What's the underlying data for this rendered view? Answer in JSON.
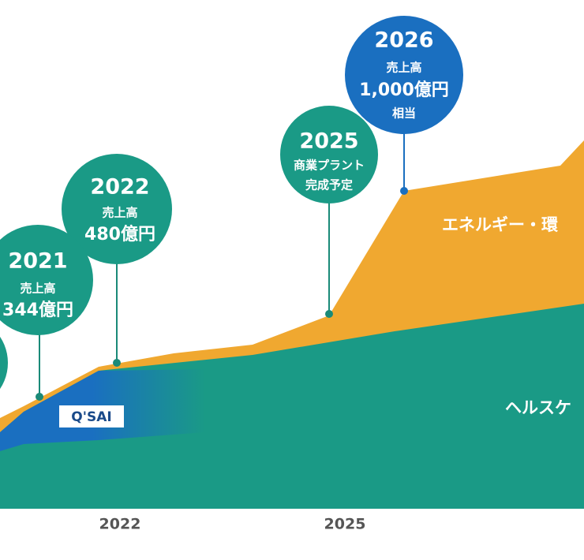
{
  "callouts": [
    {
      "year": "2026",
      "lines": [
        "売上高",
        "1,000億円",
        "相当"
      ]
    },
    {
      "year": "2025",
      "lines": [
        "商業プラント",
        "完成予定"
      ]
    },
    {
      "year": "2022",
      "lines": [
        "売上高",
        "480億円"
      ]
    },
    {
      "year": "2021",
      "lines": [
        "売上高",
        "344億円"
      ]
    }
  ],
  "x_labels": [
    "2022",
    "2025"
  ],
  "area_labels": [
    "エネルギー・環",
    "ヘルスケ"
  ],
  "logo": "Q'SAI"
}
